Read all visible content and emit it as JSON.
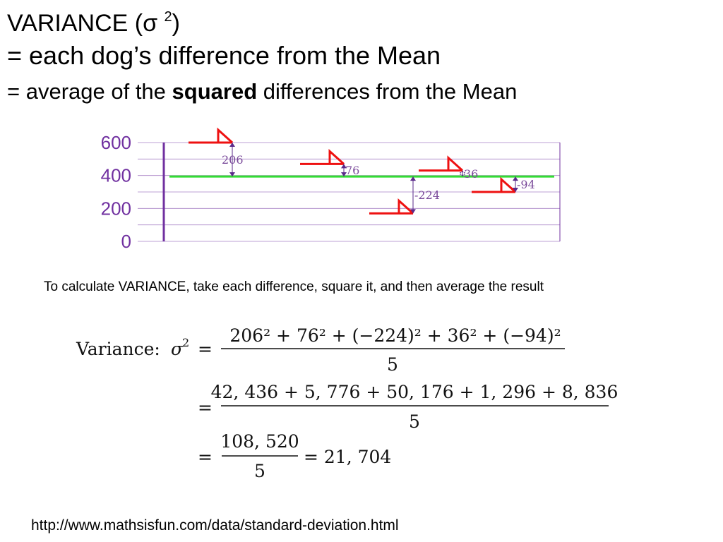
{
  "heading": {
    "line1_prefix": "VARIANCE  (σ ",
    "line1_sup": "2",
    "line1_suffix": ")",
    "line2": "= each dog’s difference from the Mean",
    "line3_prefix": "= average of the ",
    "line3_bold": "squared",
    "line3_suffix": " differences from the Mean"
  },
  "chart_data": {
    "type": "diagram",
    "y_ticks": [
      "600",
      "400",
      "200",
      "0"
    ],
    "ylim": [
      0,
      600
    ],
    "mean": 394,
    "dogs": [
      {
        "height": 600,
        "diff_label": "206"
      },
      {
        "height": 470,
        "diff_label": "76"
      },
      {
        "height": 170,
        "diff_label": "-224"
      },
      {
        "height": 430,
        "diff_label": "36"
      },
      {
        "height": 300,
        "diff_label": "-94"
      }
    ],
    "colors": {
      "axis": "#7030a0",
      "mean_line": "#33dd33",
      "dog_marker": "#ee1111",
      "arrow": "#5a2a8a",
      "label": "#7a4a9a",
      "grid": "#7030a0"
    }
  },
  "instruction": "To calculate VARIANCE, take each difference, square it, and then average the result",
  "formula": {
    "label": "Variance:",
    "sigma": "σ",
    "exp": "2",
    "equals": "=",
    "row1_numerator": "206² + 76² + (−224)² + 36² + (−94)²",
    "row1_denominator": "5",
    "row2_numerator": "42, 436 + 5, 776 + 50, 176 + 1, 296 + 8, 836",
    "row2_denominator": "5",
    "row3_numerator": "108, 520",
    "row3_denominator": "5",
    "result": "= 21, 704"
  },
  "source_url": "http://www.mathsisfun.com/data/standard-deviation.html"
}
